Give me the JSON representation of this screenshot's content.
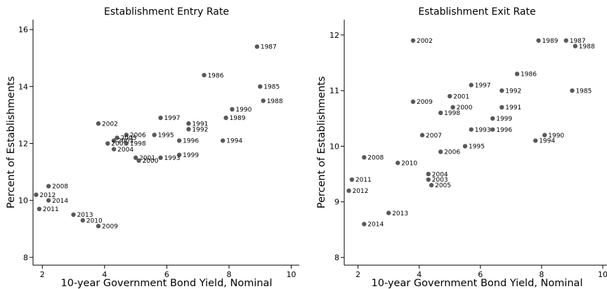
{
  "chart_data": [
    {
      "type": "scatter",
      "title": "Establishment Entry Rate",
      "xlabel": "10-year Government Bond Yield, Nominal",
      "ylabel": "Percent of Establishments",
      "xlim": [
        1.7,
        10.1
      ],
      "ylim": [
        7.9,
        16.2
      ],
      "xticks": [
        2,
        4,
        6,
        8,
        10
      ],
      "yticks": [
        8,
        10,
        12,
        14,
        16
      ],
      "grid": false,
      "point_color": "#595959",
      "points": [
        {
          "label": "1987",
          "x": 8.9,
          "y": 15.4
        },
        {
          "label": "1986",
          "x": 7.2,
          "y": 14.4
        },
        {
          "label": "1985",
          "x": 9.0,
          "y": 14.0
        },
        {
          "label": "1988",
          "x": 9.1,
          "y": 13.5
        },
        {
          "label": "1990",
          "x": 8.1,
          "y": 13.2
        },
        {
          "label": "1989",
          "x": 7.9,
          "y": 12.9
        },
        {
          "label": "1997",
          "x": 5.8,
          "y": 12.9
        },
        {
          "label": "1991",
          "x": 6.7,
          "y": 12.7
        },
        {
          "label": "1992",
          "x": 6.7,
          "y": 12.5
        },
        {
          "label": "2002",
          "x": 3.8,
          "y": 12.7
        },
        {
          "label": "2006",
          "x": 4.7,
          "y": 12.3
        },
        {
          "label": "1995",
          "x": 5.6,
          "y": 12.3
        },
        {
          "label": "2005",
          "x": 4.4,
          "y": 12.2
        },
        {
          "label": "2003",
          "x": 4.3,
          "y": 12.1
        },
        {
          "label": "2007",
          "x": 4.1,
          "y": 12.0
        },
        {
          "label": "1998",
          "x": 4.7,
          "y": 12.0
        },
        {
          "label": "1996",
          "x": 6.4,
          "y": 12.1
        },
        {
          "label": "1994",
          "x": 7.8,
          "y": 12.1
        },
        {
          "label": "2004",
          "x": 4.3,
          "y": 11.8
        },
        {
          "label": "1999",
          "x": 6.4,
          "y": 11.6
        },
        {
          "label": "2001",
          "x": 5.0,
          "y": 11.5
        },
        {
          "label": "1993",
          "x": 5.8,
          "y": 11.5
        },
        {
          "label": "2000",
          "x": 5.1,
          "y": 11.4
        },
        {
          "label": "2008",
          "x": 2.2,
          "y": 10.5
        },
        {
          "label": "2012",
          "x": 1.8,
          "y": 10.2
        },
        {
          "label": "2014",
          "x": 2.2,
          "y": 10.0
        },
        {
          "label": "2011",
          "x": 1.9,
          "y": 9.7
        },
        {
          "label": "2013",
          "x": 3.0,
          "y": 9.5
        },
        {
          "label": "2010",
          "x": 3.3,
          "y": 9.3
        },
        {
          "label": "2009",
          "x": 3.8,
          "y": 9.1
        }
      ]
    },
    {
      "type": "scatter",
      "title": "Establishment Exit Rate",
      "xlabel": "10-year Government Bond Yield, Nominal",
      "ylabel": "Percent of Establishments",
      "xlim": [
        1.55,
        10.0
      ],
      "ylim": [
        7.95,
        12.2
      ],
      "xticks": [
        2,
        4,
        6,
        8,
        10
      ],
      "yticks": [
        8,
        9,
        10,
        11,
        12
      ],
      "grid": false,
      "point_color": "#595959",
      "points": [
        {
          "label": "2002",
          "x": 3.8,
          "y": 11.9
        },
        {
          "label": "1989",
          "x": 7.9,
          "y": 11.9
        },
        {
          "label": "1987",
          "x": 8.8,
          "y": 11.9
        },
        {
          "label": "1988",
          "x": 9.1,
          "y": 11.8
        },
        {
          "label": "1986",
          "x": 7.2,
          "y": 11.3
        },
        {
          "label": "1997",
          "x": 5.7,
          "y": 11.1
        },
        {
          "label": "1992",
          "x": 6.7,
          "y": 11.0
        },
        {
          "label": "1985",
          "x": 9.0,
          "y": 11.0
        },
        {
          "label": "2001",
          "x": 5.0,
          "y": 10.9
        },
        {
          "label": "2009",
          "x": 3.8,
          "y": 10.8
        },
        {
          "label": "2000",
          "x": 5.1,
          "y": 10.7
        },
        {
          "label": "1991",
          "x": 6.7,
          "y": 10.7
        },
        {
          "label": "1998",
          "x": 4.7,
          "y": 10.6
        },
        {
          "label": "1999",
          "x": 6.4,
          "y": 10.5
        },
        {
          "label": "1993",
          "x": 5.7,
          "y": 10.3
        },
        {
          "label": "1996",
          "x": 6.4,
          "y": 10.3
        },
        {
          "label": "2007",
          "x": 4.1,
          "y": 10.2
        },
        {
          "label": "1990",
          "x": 8.1,
          "y": 10.2
        },
        {
          "label": "1994",
          "x": 7.8,
          "y": 10.1
        },
        {
          "label": "1995",
          "x": 5.5,
          "y": 10.0
        },
        {
          "label": "2006",
          "x": 4.7,
          "y": 9.9
        },
        {
          "label": "2008",
          "x": 2.2,
          "y": 9.8
        },
        {
          "label": "2010",
          "x": 3.3,
          "y": 9.7
        },
        {
          "label": "2004",
          "x": 4.3,
          "y": 9.5
        },
        {
          "label": "2011",
          "x": 1.8,
          "y": 9.4
        },
        {
          "label": "2003",
          "x": 4.3,
          "y": 9.4
        },
        {
          "label": "2005",
          "x": 4.4,
          "y": 9.3
        },
        {
          "label": "2012",
          "x": 1.7,
          "y": 9.2
        },
        {
          "label": "2013",
          "x": 3.0,
          "y": 8.8
        },
        {
          "label": "2014",
          "x": 2.2,
          "y": 8.6
        }
      ]
    }
  ]
}
